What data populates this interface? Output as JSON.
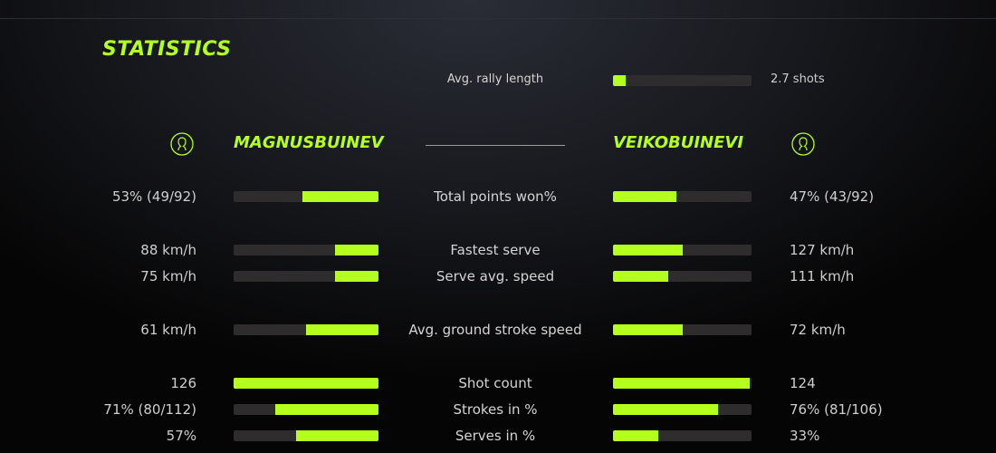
{
  "title": "STATISTICS",
  "accent": "#b4ff1e",
  "rally": {
    "label": "Avg. rally length",
    "value": "2.7 shots",
    "fill_pct": 9
  },
  "players": {
    "left": {
      "name": "MAGNUSBUINEV",
      "icon": "user-circle-icon"
    },
    "right": {
      "name": "VEIKOBUINEVI",
      "icon": "user-circle-icon"
    }
  },
  "stats": [
    {
      "label": "Total points won%",
      "left": "53% (49/92)",
      "right": "47% (43/92)",
      "left_pct": 52.5,
      "right_pct": 46
    },
    {
      "label": "Fastest serve",
      "left": "88 km/h",
      "right": "127 km/h",
      "left_pct": 30,
      "right_pct": 50
    },
    {
      "label": "Serve avg. speed",
      "left": "75 km/h",
      "right": "111 km/h",
      "left_pct": 30,
      "right_pct": 40
    },
    {
      "label": "Avg. ground stroke speed",
      "left": "61 km/h",
      "right": "72 km/h",
      "left_pct": 50,
      "right_pct": 50
    },
    {
      "label": "Shot count",
      "left": "126",
      "right": "124",
      "left_pct": 100,
      "right_pct": 99
    },
    {
      "label": "Strokes in %",
      "left": "71% (80/112)",
      "right": "76% (81/106)",
      "left_pct": 71,
      "right_pct": 76
    },
    {
      "label": "Serves in %",
      "left": "57%",
      "right": "33%",
      "left_pct": 57,
      "right_pct": 33
    }
  ]
}
